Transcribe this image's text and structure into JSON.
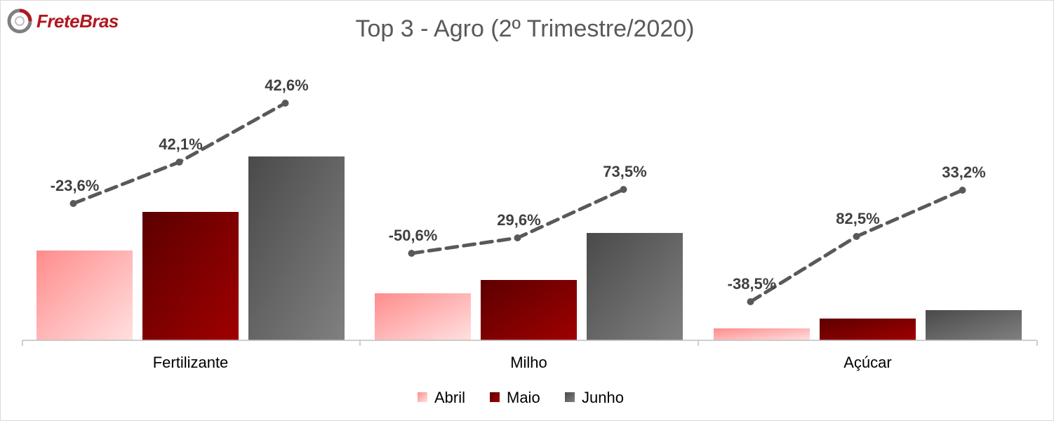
{
  "logo": {
    "text": "FreteBras"
  },
  "chart_data": {
    "type": "bar",
    "title": "Top 3 - Agro (2º Trimestre/2020)",
    "xlabel": "",
    "ylabel": "",
    "categories": [
      "Fertilizante",
      "Milho",
      "Açúcar"
    ],
    "series": [
      {
        "name": "Abril",
        "values": [
          128,
          67,
          17
        ]
      },
      {
        "name": "Maio",
        "values": [
          183,
          86,
          31
        ]
      },
      {
        "name": "Junho",
        "values": [
          262,
          153,
          43
        ]
      }
    ],
    "line_series": {
      "labels": [
        [
          "-23,6%",
          "42,1%",
          "42,6%"
        ],
        [
          "-50,6%",
          "29,6%",
          "73,5%"
        ],
        [
          "-38,5%",
          "82,5%",
          "33,2%"
        ]
      ],
      "values": [
        [
          -23.6,
          42.1,
          42.6
        ],
        [
          -50.6,
          29.6,
          73.5
        ],
        [
          -38.5,
          82.5,
          33.2
        ]
      ]
    },
    "legend_position": "bottom",
    "grid": false,
    "colors": {
      "abril_light": "#ffe0e0",
      "abril_dark": "#ff8c8c",
      "maio_light": "#a00000",
      "maio_dark": "#5c0000",
      "junho_light": "#808080",
      "junho_dark": "#4a4a4a",
      "line": "#595959",
      "axis": "#bfbfbf",
      "title": "#595959",
      "text": "#000000",
      "label": "#404040"
    }
  }
}
